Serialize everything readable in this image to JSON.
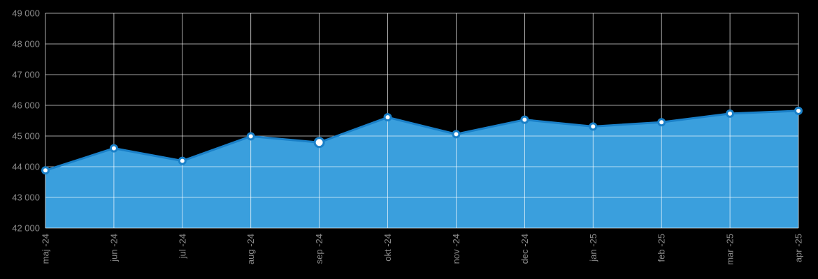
{
  "chart_data": {
    "type": "area",
    "title": "",
    "xlabel": "",
    "ylabel": "",
    "categories": [
      "maj -24",
      "jun -24",
      "jul -24",
      "aug -24",
      "sep -24",
      "okt -24",
      "nov -24",
      "dec -24",
      "jan -25",
      "feb -25",
      "mar -25",
      "apr -25"
    ],
    "series": [
      {
        "values": [
          43880,
          44600,
          44190,
          44990,
          44790,
          45610,
          45060,
          45530,
          45310,
          45450,
          45730,
          45820
        ]
      }
    ],
    "ylim": [
      42000,
      49000
    ],
    "yticks": [
      42000,
      43000,
      44000,
      45000,
      46000,
      47000,
      48000,
      49000
    ],
    "ytick_labels": [
      "42 000",
      "43 000",
      "44 000",
      "45 000",
      "46 000",
      "47 000",
      "48 000",
      "49 000"
    ],
    "highlighted_index": 4,
    "grid": true,
    "colors": {
      "fill": "#3a9fdd",
      "line": "#1a80c8",
      "grid": "#ffffff",
      "background": "#000000",
      "text": "#8a8a8a"
    }
  }
}
